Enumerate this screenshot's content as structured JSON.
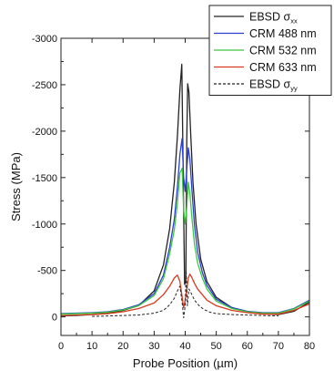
{
  "chart_data": {
    "type": "line",
    "title": "",
    "xlabel": "Probe Position (µm)",
    "ylabel": "Stress (MPa)",
    "xlim": [
      0,
      80
    ],
    "ylim": [
      -3000,
      200
    ],
    "y_axis_inverted": true,
    "grid": false,
    "legend_position": "top-right",
    "x_ticks": [
      0,
      10,
      20,
      30,
      40,
      50,
      60,
      70,
      80
    ],
    "y_ticks": [
      -3000,
      -2500,
      -2000,
      -1500,
      -1000,
      -500,
      0
    ],
    "x_tick_labels": [
      "0",
      "10",
      "20",
      "30",
      "40",
      "50",
      "60",
      "70",
      "80"
    ],
    "y_tick_labels": [
      "-3000",
      "-2500",
      "-2000",
      "-1500",
      "-1000",
      "-500",
      "0"
    ],
    "series": [
      {
        "name": "EBSD σxx",
        "legend_main": "EBSD σ",
        "legend_sub": "xx",
        "color": "#222222",
        "dash": "solid",
        "x": [
          0,
          5,
          10,
          15,
          20,
          25,
          30,
          33,
          35,
          36.5,
          37.5,
          38.3,
          38.9,
          39.3,
          39.8,
          40.2,
          40.5,
          40.8,
          41.2,
          41.8,
          42.5,
          43.5,
          45,
          47,
          50,
          55,
          60,
          65,
          70,
          75,
          80
        ],
        "y": [
          -10,
          -15,
          -25,
          -40,
          -70,
          -120,
          -280,
          -560,
          -950,
          -1450,
          -1950,
          -2450,
          -2720,
          -1700,
          -350,
          -380,
          -1900,
          -2510,
          -2420,
          -1950,
          -1450,
          -1000,
          -620,
          -380,
          -210,
          -100,
          -55,
          -35,
          -25,
          -60,
          -160
        ]
      },
      {
        "name": "CRM 488 nm",
        "color": "#2b3fd0",
        "dash": "solid",
        "x": [
          0,
          5,
          10,
          15,
          20,
          25,
          30,
          33,
          35,
          36.5,
          37.5,
          38.3,
          39,
          39.5,
          40,
          40.5,
          41,
          41.5,
          42.2,
          43,
          44,
          45.5,
          47,
          50,
          55,
          60,
          65,
          70,
          75,
          80
        ],
        "y": [
          -35,
          -40,
          -45,
          -55,
          -80,
          -130,
          -250,
          -450,
          -750,
          -1050,
          -1400,
          -1750,
          -1920,
          -1500,
          -1350,
          -1580,
          -1820,
          -1700,
          -1350,
          -980,
          -700,
          -480,
          -340,
          -190,
          -100,
          -60,
          -45,
          -45,
          -90,
          -180
        ]
      },
      {
        "name": "CRM 532 nm",
        "color": "#3ec83e",
        "dash": "solid",
        "x": [
          0,
          5,
          10,
          15,
          20,
          25,
          30,
          33,
          35,
          36.5,
          37.5,
          38.3,
          39,
          39.5,
          40,
          40.5,
          41,
          41.5,
          42.2,
          43,
          44,
          45.5,
          47,
          50,
          55,
          60,
          65,
          70,
          75,
          80
        ],
        "y": [
          -30,
          -35,
          -40,
          -50,
          -75,
          -120,
          -230,
          -410,
          -680,
          -940,
          -1230,
          -1550,
          -1600,
          -1150,
          -1000,
          -1180,
          -1450,
          -1330,
          -1050,
          -780,
          -580,
          -420,
          -300,
          -170,
          -90,
          -55,
          -40,
          -40,
          -85,
          -170
        ]
      },
      {
        "name": "CRM 633 nm",
        "color": "#d83a1e",
        "dash": "solid",
        "x": [
          0,
          5,
          10,
          15,
          20,
          25,
          30,
          33,
          35,
          36.5,
          37.5,
          38.3,
          39,
          39.5,
          40,
          40.5,
          41,
          41.5,
          42.2,
          43,
          44,
          45.5,
          47,
          50,
          55,
          60,
          65,
          70,
          75,
          80
        ],
        "y": [
          -15,
          -20,
          -25,
          -35,
          -55,
          -90,
          -150,
          -240,
          -330,
          -420,
          -450,
          -380,
          -220,
          -100,
          -180,
          -290,
          -420,
          -460,
          -420,
          -360,
          -300,
          -240,
          -180,
          -120,
          -70,
          -45,
          -30,
          -30,
          -70,
          -140
        ]
      },
      {
        "name": "EBSD σyy",
        "legend_main": "EBSD σ",
        "legend_sub": "yy",
        "color": "#222222",
        "dash": "dashed",
        "x": [
          10,
          15,
          20,
          25,
          30,
          33,
          35,
          36.5,
          37.5,
          38.3,
          39,
          39.5,
          40,
          40.3,
          40.7,
          41.2,
          42,
          43,
          44.5,
          46,
          48,
          50,
          55,
          60,
          65,
          70
        ],
        "y": [
          -5,
          -10,
          -15,
          -20,
          -40,
          -70,
          -130,
          -200,
          -280,
          -330,
          -160,
          10,
          -120,
          -500,
          -120,
          -300,
          -250,
          -180,
          -120,
          -80,
          -50,
          -35,
          -25,
          -20,
          -15,
          -10
        ]
      }
    ]
  }
}
